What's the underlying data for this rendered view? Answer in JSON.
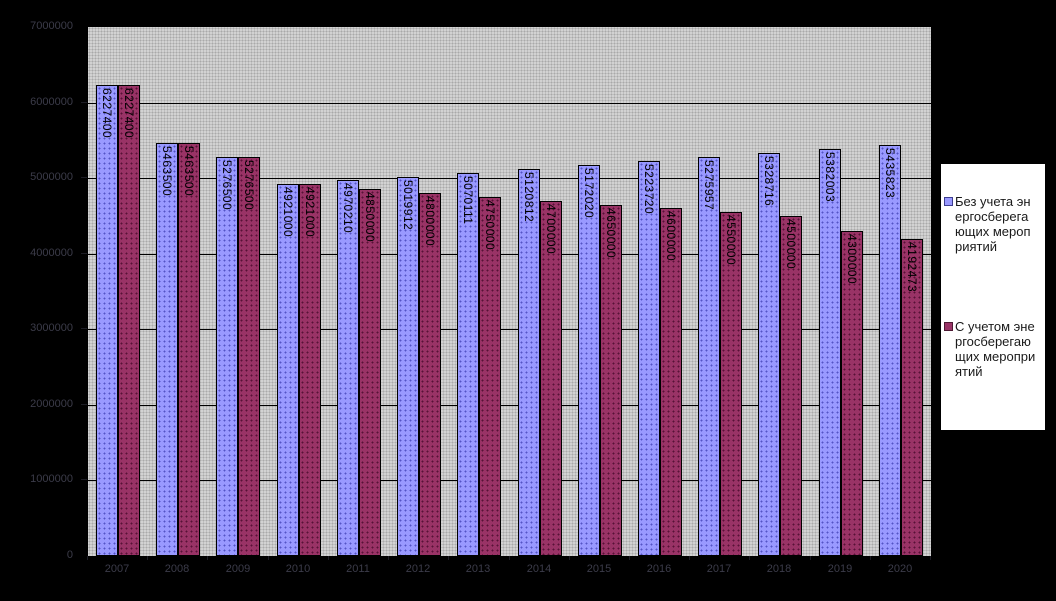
{
  "chart_data": {
    "type": "bar",
    "title": "",
    "categories": [
      "2007",
      "2008",
      "2009",
      "2010",
      "2011",
      "2012",
      "2013",
      "2014",
      "2015",
      "2016",
      "2017",
      "2018",
      "2019",
      "2020"
    ],
    "series": [
      {
        "name": "Без учета энергосберегающих мероприятий",
        "color": "#9999ff",
        "values": [
          6227400,
          5463500,
          5276500,
          4921000,
          4970210,
          5019912,
          5070111,
          5120812,
          5172020,
          5223720,
          5275957,
          5328716,
          5382003,
          5435823
        ]
      },
      {
        "name": "С учетом энергосберегающих мероприятий",
        "color": "#993366",
        "values": [
          6227400,
          5463500,
          5276500,
          4921000,
          4850000,
          4800000,
          4750000,
          4700000,
          4650000,
          4600000,
          4550000,
          4500000,
          4300000,
          4192473
        ]
      }
    ],
    "xlabel": "",
    "ylabel": "",
    "ylim": [
      0,
      7000000
    ],
    "ytick_step": 1000000,
    "yticks": [
      "7000000",
      "6000000",
      "5000000",
      "4000000",
      "3000000",
      "2000000",
      "1000000",
      "0"
    ],
    "grid": true,
    "data_labels": true,
    "legend_position": "right"
  },
  "colors": {
    "background": "#000000",
    "plot_background": "#c0c0c0",
    "series1": "#9999ff",
    "series2": "#993366",
    "gridline": "#000000",
    "bar_label_text": "#000000",
    "axis_label_text": "#3c3c4a",
    "legend_background": "#ffffff",
    "legend_border": "#000000"
  }
}
